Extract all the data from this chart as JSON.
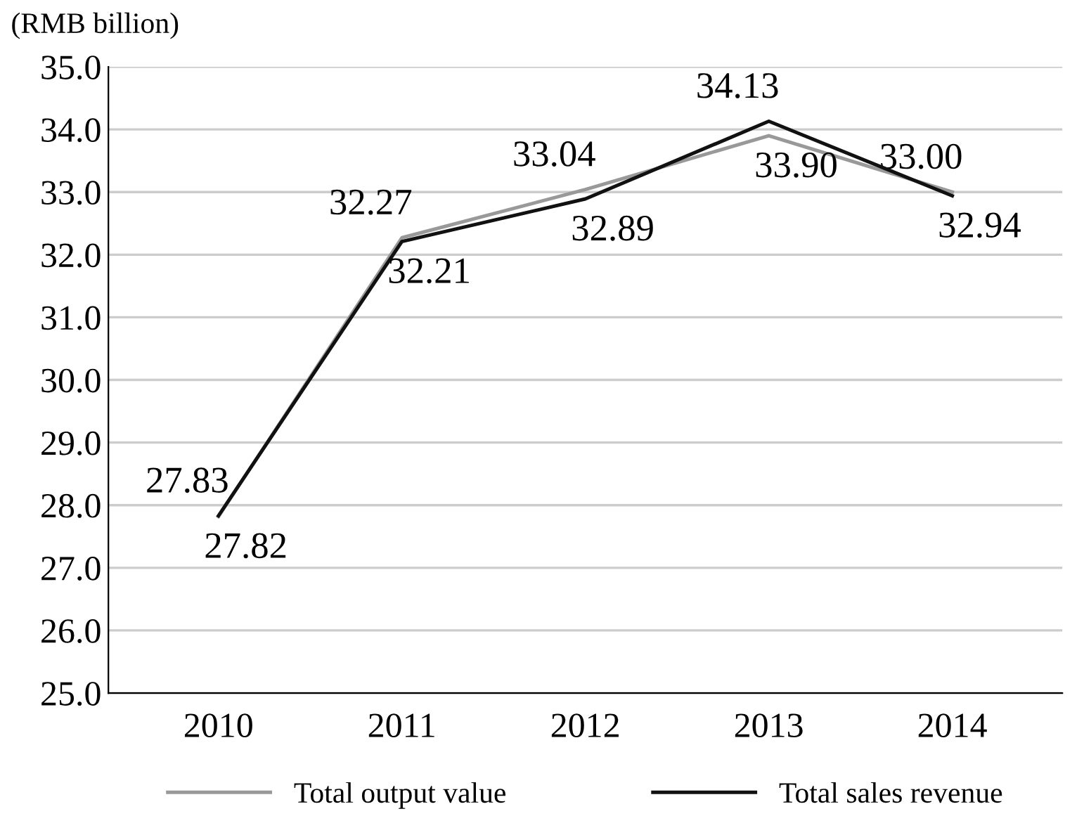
{
  "chart_data": {
    "type": "line",
    "ylabel": "(RMB billion)",
    "categories": [
      "2010",
      "2011",
      "2012",
      "2013",
      "2014"
    ],
    "series": [
      {
        "name": "Total output value",
        "color": "#999999",
        "values": [
          27.82,
          32.27,
          33.04,
          33.9,
          33.0
        ],
        "value_labels": [
          "27.82",
          "32.27",
          "33.04",
          "33.90",
          "33.00"
        ]
      },
      {
        "name": "Total sales revenue",
        "color": "#111111",
        "values": [
          27.83,
          32.21,
          32.89,
          34.13,
          32.94
        ],
        "value_labels": [
          "27.83",
          "32.21",
          "32.89",
          "34.13",
          "32.94"
        ]
      }
    ],
    "ylim": [
      25.0,
      35.0
    ],
    "yticks": [
      {
        "value": 25,
        "label": "25.0"
      },
      {
        "value": 26,
        "label": "26.0"
      },
      {
        "value": 27,
        "label": "27.0"
      },
      {
        "value": 28,
        "label": "28.0"
      },
      {
        "value": 29,
        "label": "29.0"
      },
      {
        "value": 30,
        "label": "30.0"
      },
      {
        "value": 31,
        "label": "31.0"
      },
      {
        "value": 32,
        "label": "32.0"
      },
      {
        "value": 33,
        "label": "33.0"
      },
      {
        "value": 34,
        "label": "34.0"
      },
      {
        "value": 35,
        "label": "35.0"
      }
    ],
    "grid": "y",
    "legend": "bottom",
    "marker": "none",
    "line_style": "solid"
  }
}
